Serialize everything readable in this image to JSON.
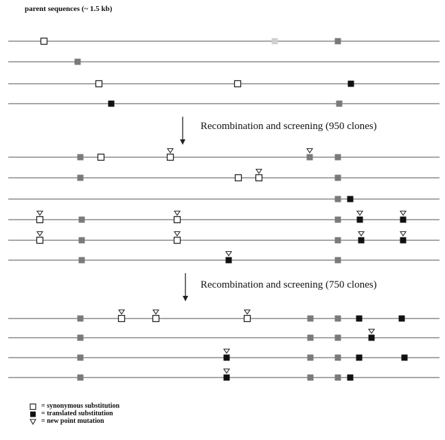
{
  "title": "parent sequences (~ 1.5 kb)",
  "steps": [
    {
      "label": "Recombination and screening (950 clones)"
    },
    {
      "label": "Recombination and screening (750 clones)"
    }
  ],
  "legend": [
    {
      "symbol": "open-square",
      "text": "= synonymous substitution"
    },
    {
      "symbol": "filled-square",
      "text": "= translated substitution"
    },
    {
      "symbol": "triangle",
      "text": "= new point mutation"
    }
  ],
  "colors": {
    "line": "#8a8a8a",
    "inherited": "#7a7a7a",
    "filled": "#111111",
    "open_fill": "#ffffff",
    "outline": "#222222"
  },
  "groups": [
    {
      "name": "parents",
      "sequences": [
        {
          "markers": [
            {
              "pos": 64,
              "type": "open"
            },
            {
              "pos": 400,
              "type": "light"
            },
            {
              "pos": 492,
              "type": "gray"
            }
          ]
        },
        {
          "markers": [
            {
              "pos": 113,
              "type": "gray"
            }
          ]
        },
        {
          "markers": [
            {
              "pos": 144,
              "type": "open"
            },
            {
              "pos": 346,
              "type": "open"
            },
            {
              "pos": 511,
              "type": "filled"
            }
          ]
        },
        {
          "markers": [
            {
              "pos": 162,
              "type": "filled"
            },
            {
              "pos": 494,
              "type": "gray"
            }
          ]
        }
      ]
    },
    {
      "name": "round-1",
      "sequences": [
        {
          "markers": [
            {
              "pos": 117,
              "type": "gray"
            },
            {
              "pos": 147,
              "type": "open"
            },
            {
              "pos": 248,
              "type": "open",
              "new": true
            },
            {
              "pos": 451,
              "type": "gray",
              "new": true
            },
            {
              "pos": 492,
              "type": "gray"
            }
          ]
        },
        {
          "markers": [
            {
              "pos": 117,
              "type": "gray"
            },
            {
              "pos": 347,
              "type": "open"
            },
            {
              "pos": 377,
              "type": "open",
              "new": true
            },
            {
              "pos": 492,
              "type": "gray"
            }
          ]
        },
        {
          "markers": [
            {
              "pos": 492,
              "type": "gray"
            },
            {
              "pos": 510,
              "type": "filled"
            }
          ]
        },
        {
          "markers": [
            {
              "pos": 58,
              "type": "open",
              "new": true
            },
            {
              "pos": 119,
              "type": "gray"
            },
            {
              "pos": 258,
              "type": "open",
              "new": true
            },
            {
              "pos": 492,
              "type": "gray"
            },
            {
              "pos": 524,
              "type": "filled",
              "new": true
            },
            {
              "pos": 587,
              "type": "filled",
              "new": true
            }
          ]
        },
        {
          "markers": [
            {
              "pos": 58,
              "type": "open",
              "new": true
            },
            {
              "pos": 119,
              "type": "gray"
            },
            {
              "pos": 258,
              "type": "open",
              "new": true
            },
            {
              "pos": 492,
              "type": "gray"
            },
            {
              "pos": 526,
              "type": "filled",
              "new": true
            },
            {
              "pos": 587,
              "type": "filled",
              "new": true
            }
          ]
        },
        {
          "markers": [
            {
              "pos": 119,
              "type": "gray"
            },
            {
              "pos": 333,
              "type": "filled",
              "new": true
            },
            {
              "pos": 492,
              "type": "gray"
            }
          ]
        }
      ]
    },
    {
      "name": "round-2",
      "sequences": [
        {
          "markers": [
            {
              "pos": 117,
              "type": "gray"
            },
            {
              "pos": 177,
              "type": "open",
              "new": true
            },
            {
              "pos": 227,
              "type": "open",
              "new": true
            },
            {
              "pos": 360,
              "type": "open",
              "new": true
            },
            {
              "pos": 452,
              "type": "gray"
            },
            {
              "pos": 492,
              "type": "gray"
            },
            {
              "pos": 523,
              "type": "filled"
            },
            {
              "pos": 585,
              "type": "filled"
            }
          ]
        },
        {
          "markers": [
            {
              "pos": 117,
              "type": "gray"
            },
            {
              "pos": 452,
              "type": "gray"
            },
            {
              "pos": 492,
              "type": "gray"
            },
            {
              "pos": 541,
              "type": "filled",
              "new": true
            }
          ]
        },
        {
          "markers": [
            {
              "pos": 117,
              "type": "gray"
            },
            {
              "pos": 330,
              "type": "filled",
              "new": true
            },
            {
              "pos": 452,
              "type": "gray"
            },
            {
              "pos": 492,
              "type": "gray"
            },
            {
              "pos": 523,
              "type": "filled"
            },
            {
              "pos": 589,
              "type": "filled"
            }
          ]
        },
        {
          "markers": [
            {
              "pos": 117,
              "type": "gray"
            },
            {
              "pos": 330,
              "type": "filled",
              "new": true
            },
            {
              "pos": 452,
              "type": "gray"
            },
            {
              "pos": 492,
              "type": "gray"
            },
            {
              "pos": 510,
              "type": "filled"
            }
          ]
        }
      ]
    }
  ]
}
